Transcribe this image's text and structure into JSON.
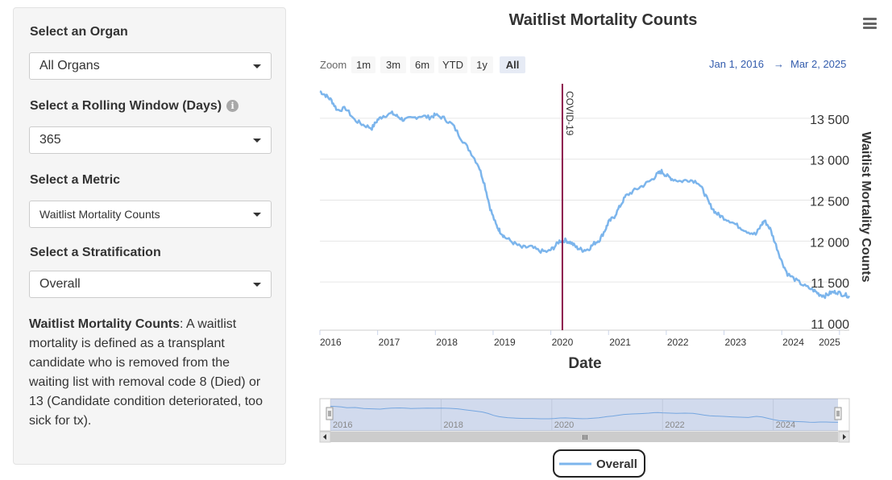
{
  "sidebar": {
    "organ_label": "Select an Organ",
    "organ_value": "All Organs",
    "window_label": "Select a Rolling Window (Days)",
    "window_value": "365",
    "metric_label": "Select a Metric",
    "metric_value": "Waitlist Mortality Counts",
    "strat_label": "Select a Stratification",
    "strat_value": "Overall",
    "desc_term": "Waitlist Mortality Counts",
    "desc_text": ": A waitlist mortality is defined as a transplant candidate who is removed from the waiting list with removal code 8 (Died) or 13 (Candidate condition deteriorated, too sick for tx)."
  },
  "chart": {
    "title": "Waitlist Mortality Counts",
    "zoom_label": "Zoom",
    "zoom_buttons": [
      "1m",
      "3m",
      "6m",
      "YTD",
      "1y",
      "All"
    ],
    "zoom_selected": "All",
    "range_from": "Jan 1, 2016",
    "range_arrow": "→",
    "range_to": "Mar 2, 2025",
    "legend_label": "Overall",
    "plot_line_label": "COVID-19",
    "navigator_labels": [
      "2016",
      "2018",
      "2020",
      "2022",
      "2024"
    ],
    "scrollbar_grip": "III"
  },
  "chart_data": {
    "type": "line",
    "title": "Waitlist Mortality Counts",
    "xlabel": "Date",
    "ylabel": "Waitlist Mortality Counts",
    "xlim": [
      2016.0,
      2025.17
    ],
    "ylim": [
      11000,
      14000
    ],
    "y_ticks": [
      11000,
      11500,
      12000,
      12500,
      13000,
      13500
    ],
    "y_tick_labels": [
      "11 000",
      "11 500",
      "12 000",
      "12 500",
      "13 000",
      "13 500"
    ],
    "x_ticks": [
      2016,
      2017,
      2018,
      2019,
      2020,
      2021,
      2022,
      2023,
      2024,
      2025
    ],
    "x_tick_labels": [
      "2016",
      "2017",
      "2018",
      "2019",
      "2020",
      "2021",
      "2022",
      "2023",
      "2024",
      "2025"
    ],
    "annotation": {
      "label": "COVID-19",
      "x": 2020.2
    },
    "series": [
      {
        "name": "Overall",
        "color": "#7cb5ec",
        "x": [
          2016.0,
          2016.1,
          2016.2,
          2016.3,
          2016.45,
          2016.6,
          2016.75,
          2016.9,
          2017.0,
          2017.1,
          2017.25,
          2017.35,
          2017.45,
          2017.6,
          2017.75,
          2017.9,
          2018.0,
          2018.15,
          2018.3,
          2018.45,
          2018.6,
          2018.75,
          2018.85,
          2018.95,
          2019.05,
          2019.12,
          2019.2,
          2019.35,
          2019.5,
          2019.65,
          2019.8,
          2019.95,
          2020.05,
          2020.15,
          2020.25,
          2020.35,
          2020.45,
          2020.55,
          2020.65,
          2020.75,
          2020.85,
          2020.95,
          2021.0,
          2021.1,
          2021.2,
          2021.3,
          2021.45,
          2021.6,
          2021.75,
          2021.85,
          2021.92,
          2022.0,
          2022.1,
          2022.25,
          2022.4,
          2022.55,
          2022.65,
          2022.75,
          2022.85,
          2022.95,
          2023.1,
          2023.25,
          2023.4,
          2023.55,
          2023.65,
          2023.7,
          2023.8,
          2023.9,
          2024.0,
          2024.1,
          2024.25,
          2024.4,
          2024.55,
          2024.65,
          2024.75,
          2024.85,
          2024.95,
          2025.05,
          2025.17
        ],
        "values": [
          13830,
          13780,
          13720,
          13600,
          13620,
          13480,
          13420,
          13380,
          13480,
          13530,
          13560,
          13520,
          13480,
          13500,
          13530,
          13510,
          13540,
          13500,
          13420,
          13250,
          13100,
          12920,
          12700,
          12400,
          12200,
          12120,
          12050,
          11980,
          11920,
          11930,
          11880,
          11870,
          11920,
          12000,
          12010,
          11980,
          11920,
          11890,
          11900,
          11970,
          12020,
          12150,
          12230,
          12300,
          12430,
          12550,
          12620,
          12680,
          12750,
          12820,
          12850,
          12800,
          12760,
          12730,
          12750,
          12720,
          12600,
          12450,
          12350,
          12300,
          12250,
          12180,
          12120,
          12080,
          12200,
          12250,
          12150,
          11950,
          11750,
          11600,
          11520,
          11450,
          11400,
          11350,
          11330,
          11370,
          11380,
          11350,
          11330
        ]
      }
    ]
  }
}
